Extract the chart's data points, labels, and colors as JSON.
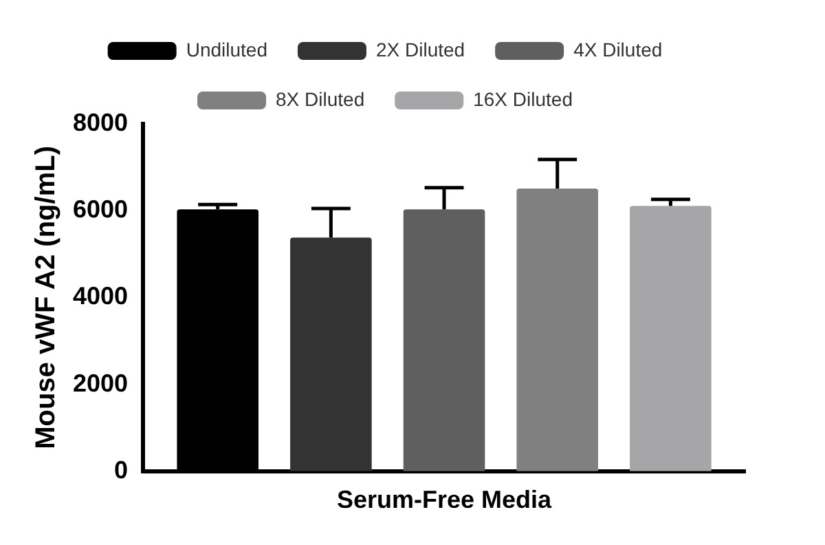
{
  "chart_data": {
    "type": "bar",
    "ylabel": "Mouse vWF A2 (ng/mL)",
    "categories": [
      "Serum-Free Media"
    ],
    "series": [
      {
        "name": "Undiluted",
        "color": "#000000",
        "values": [
          6030
        ],
        "errors": [
          [
            6030,
            6140
          ]
        ]
      },
      {
        "name": "2X Diluted",
        "color": "#333333",
        "values": [
          5380
        ],
        "errors": [
          [
            5380,
            6050
          ]
        ]
      },
      {
        "name": "4X Diluted",
        "color": "#5f5f5f",
        "values": [
          6030
        ],
        "errors": [
          [
            6030,
            6530
          ]
        ]
      },
      {
        "name": "8X Diluted",
        "color": "#808080",
        "values": [
          6510
        ],
        "errors": [
          [
            6510,
            7180
          ]
        ]
      },
      {
        "name": "16X Diluted",
        "color": "#a6a6a8",
        "values": [
          6110
        ],
        "errors": [
          [
            6110,
            6260
          ]
        ]
      }
    ],
    "ylim": [
      0,
      8000
    ],
    "yticks": [
      0,
      2000,
      4000,
      6000,
      8000
    ],
    "grid": false,
    "legend": "top"
  }
}
